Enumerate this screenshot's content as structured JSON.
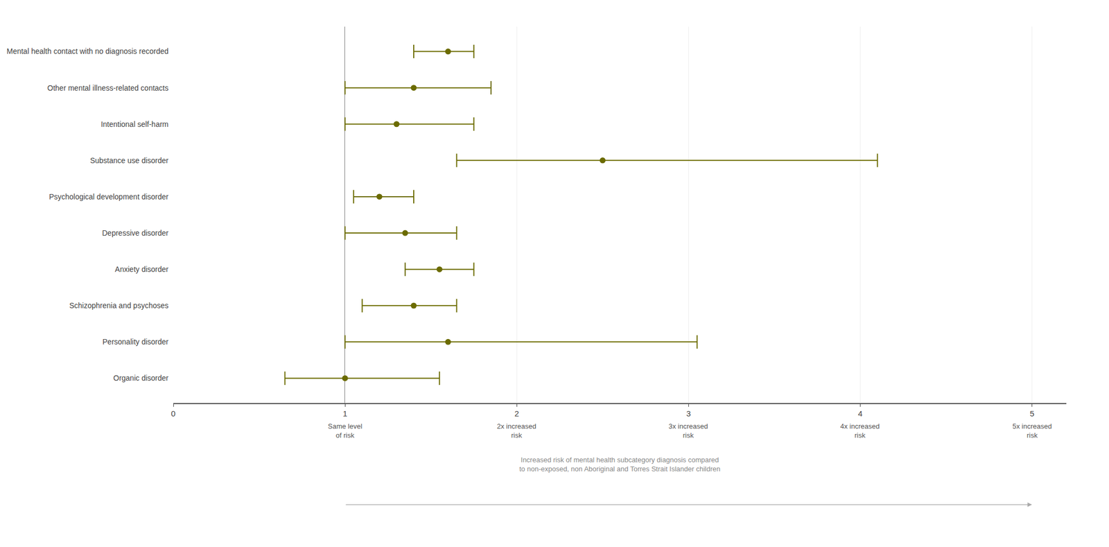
{
  "chart_data": {
    "type": "scatter",
    "categories": [
      "Mental health contact with no diagnosis recorded",
      "Other mental illness-related contacts",
      "Intentional self-harm",
      "Substance use disorder",
      "Psychological development disorder",
      "Depressive disorder",
      "Anxiety disorder",
      "Schizophrenia and psychoses",
      "Personality disorder",
      "Organic disorder"
    ],
    "values": [
      1.6,
      1.4,
      1.3,
      2.5,
      1.2,
      1.35,
      1.55,
      1.4,
      1.6,
      1.0
    ],
    "ci_low": [
      1.4,
      1.0,
      1.0,
      1.65,
      1.05,
      1.0,
      1.35,
      1.1,
      1.0,
      0.65
    ],
    "ci_high": [
      1.75,
      1.85,
      1.75,
      4.1,
      1.4,
      1.65,
      1.75,
      1.65,
      3.05,
      1.55
    ],
    "color": "#6b6b00",
    "reference_line": 1,
    "xlim": [
      0,
      5.2
    ],
    "xticks": [
      0,
      1,
      2,
      3,
      4,
      5
    ],
    "xlabel": "Increased risk of mental health subcategory diagnosis compared\nto non-exposed, non Aboriginal and Torres Strait Islander children",
    "annotations": [
      {
        "x": 1,
        "text": "Same level\nof risk"
      },
      {
        "x": 2,
        "text": "2x increased\nrisk"
      },
      {
        "x": 3,
        "text": "3x increased\nrisk"
      },
      {
        "x": 4,
        "text": "4x increased\nrisk"
      },
      {
        "x": 5,
        "text": "5x increased\nrisk"
      }
    ],
    "grid": true
  }
}
